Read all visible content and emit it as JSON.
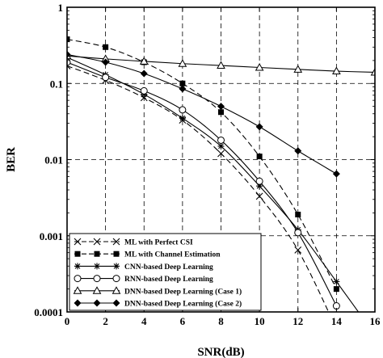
{
  "chart_data": {
    "type": "line",
    "xlabel": "SNR(dB)",
    "ylabel": "BER",
    "xlim": [
      0,
      16
    ],
    "ylim": [
      0.0001,
      1
    ],
    "yscale": "log",
    "grid": true,
    "legend_placement": "bottom-left",
    "x_ticks": [
      "0",
      "2",
      "4",
      "6",
      "8",
      "10",
      "12",
      "14",
      "16"
    ],
    "y_ticks": [
      "1",
      "0.1",
      "0.01",
      "0.001",
      "0.0001"
    ],
    "series": [
      {
        "name": "ML with Perfect CSI",
        "marker": "x",
        "line": "dashed",
        "x": [
          0,
          2,
          4,
          6,
          8,
          10,
          12,
          14
        ],
        "y": [
          0.17,
          0.11,
          0.065,
          0.033,
          0.012,
          0.0033,
          0.00065,
          6e-05
        ]
      },
      {
        "name": "ML with Channel Estimation",
        "marker": "filled-square",
        "line": "dashed",
        "x": [
          0,
          2,
          4,
          6,
          8,
          10,
          12,
          14
        ],
        "y": [
          0.38,
          0.3,
          0.19,
          0.1,
          0.042,
          0.011,
          0.0019,
          0.0002
        ]
      },
      {
        "name": "CNN-based Deep Learning",
        "marker": "star",
        "line": "solid",
        "x": [
          0,
          2,
          4,
          6,
          8,
          10,
          12,
          14,
          16
        ],
        "y": [
          0.22,
          0.13,
          0.072,
          0.035,
          0.015,
          0.0045,
          0.0012,
          0.00025,
          5e-05
        ]
      },
      {
        "name": "RNN-based Deep Learning",
        "marker": "open-circle",
        "line": "solid",
        "x": [
          0,
          2,
          4,
          6,
          8,
          10,
          12,
          14
        ],
        "y": [
          0.19,
          0.12,
          0.08,
          0.045,
          0.018,
          0.0052,
          0.0011,
          0.00012
        ]
      },
      {
        "name": "DNN-based Deep Learning (Case 1)",
        "marker": "open-triangle",
        "line": "solid",
        "x": [
          0,
          2,
          4,
          6,
          8,
          10,
          12,
          14,
          16
        ],
        "y": [
          0.23,
          0.21,
          0.195,
          0.182,
          0.172,
          0.162,
          0.153,
          0.145,
          0.14
        ]
      },
      {
        "name": "DNN-based Deep Learning (Case 2)",
        "marker": "filled-diamond",
        "line": "solid",
        "x": [
          0,
          2,
          4,
          6,
          8,
          10,
          12,
          14
        ],
        "y": [
          0.24,
          0.19,
          0.135,
          0.085,
          0.05,
          0.027,
          0.013,
          0.0065
        ]
      }
    ]
  }
}
